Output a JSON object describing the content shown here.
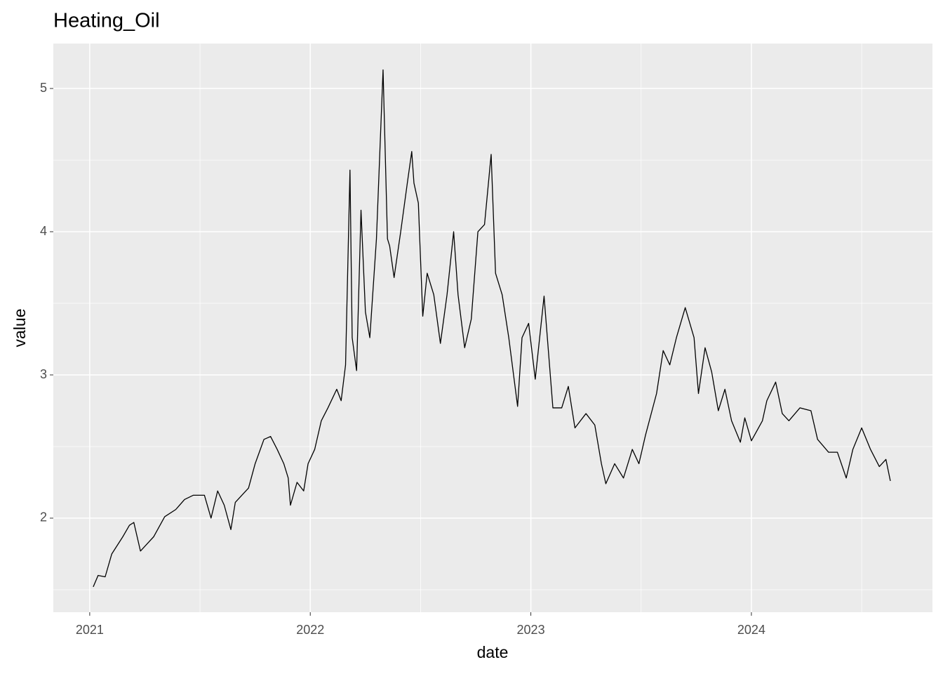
{
  "chart_data": {
    "type": "line",
    "title": "Heating_Oil",
    "x_label": "date",
    "y_label": "value",
    "x": [
      2021.016,
      2021.038,
      2021.07,
      2021.1,
      2021.15,
      2021.18,
      2021.2,
      2021.23,
      2021.26,
      2021.29,
      2021.34,
      2021.39,
      2021.43,
      2021.47,
      2021.52,
      2021.55,
      2021.58,
      2021.61,
      2021.64,
      2021.66,
      2021.69,
      2021.72,
      2021.75,
      2021.79,
      2021.82,
      2021.85,
      2021.88,
      2021.9,
      2021.91,
      2021.94,
      2021.97,
      2021.99,
      2022.02,
      2022.05,
      2022.08,
      2022.12,
      2022.14,
      2022.16,
      2022.18,
      2022.19,
      2022.21,
      2022.23,
      2022.25,
      2022.27,
      2022.3,
      2022.33,
      2022.35,
      2022.36,
      2022.38,
      2022.41,
      2022.44,
      2022.46,
      2022.47,
      2022.49,
      2022.51,
      2022.53,
      2022.56,
      2022.59,
      2022.62,
      2022.65,
      2022.67,
      2022.7,
      2022.73,
      2022.76,
      2022.79,
      2022.82,
      2022.84,
      2022.87,
      2022.9,
      2022.94,
      2022.96,
      2022.99,
      2023.02,
      2023.06,
      2023.1,
      2023.14,
      2023.17,
      2023.2,
      2023.25,
      2023.29,
      2023.32,
      2023.34,
      2023.38,
      2023.42,
      2023.46,
      2023.49,
      2023.52,
      2023.57,
      2023.6,
      2023.63,
      2023.66,
      2023.7,
      2023.74,
      2023.76,
      2023.79,
      2023.82,
      2023.85,
      2023.88,
      2023.91,
      2023.95,
      2023.97,
      2024.0,
      2024.05,
      2024.07,
      2024.11,
      2024.14,
      2024.17,
      2024.22,
      2024.27,
      2024.3,
      2024.35,
      2024.39,
      2024.43,
      2024.46,
      2024.5,
      2024.54,
      2024.58,
      2024.61,
      2024.63
    ],
    "series": [
      {
        "color": "#000000",
        "values": [
          1.52,
          1.6,
          1.59,
          1.75,
          1.87,
          1.95,
          1.97,
          1.77,
          1.82,
          1.87,
          2.01,
          2.06,
          2.13,
          2.16,
          2.16,
          2.0,
          2.19,
          2.09,
          1.92,
          2.11,
          2.16,
          2.21,
          2.38,
          2.55,
          2.57,
          2.48,
          2.38,
          2.28,
          2.09,
          2.25,
          2.19,
          2.38,
          2.48,
          2.68,
          2.77,
          2.9,
          2.82,
          3.07,
          4.43,
          3.26,
          3.03,
          4.15,
          3.44,
          3.26,
          3.95,
          5.13,
          3.95,
          3.9,
          3.68,
          4.0,
          4.34,
          4.56,
          4.34,
          4.2,
          3.41,
          3.71,
          3.56,
          3.22,
          3.56,
          4.0,
          3.56,
          3.19,
          3.39,
          4.0,
          4.05,
          4.54,
          3.71,
          3.56,
          3.26,
          2.78,
          3.26,
          3.36,
          2.97,
          3.55,
          2.77,
          2.77,
          2.92,
          2.63,
          2.73,
          2.65,
          2.38,
          2.24,
          2.38,
          2.28,
          2.48,
          2.38,
          2.58,
          2.87,
          3.17,
          3.07,
          3.26,
          3.47,
          3.26,
          2.87,
          3.19,
          3.02,
          2.75,
          2.9,
          2.68,
          2.53,
          2.7,
          2.54,
          2.68,
          2.82,
          2.95,
          2.73,
          2.68,
          2.77,
          2.75,
          2.55,
          2.46,
          2.46,
          2.28,
          2.48,
          2.63,
          2.48,
          2.36,
          2.41,
          2.26
        ]
      }
    ],
    "xlim": [
      2020.835,
      2024.821
    ],
    "xticks": [
      2021,
      2022,
      2023,
      2024
    ],
    "x_minor_ticks": [
      2021.5,
      2022.5,
      2023.5,
      2024.5
    ],
    "ylim": [
      1.343,
      5.314
    ],
    "yticks": [
      2,
      3,
      4,
      5
    ],
    "y_minor_ticks": [
      1.5,
      2.5,
      3.5,
      4.5
    ],
    "grid": true,
    "panel_color": "#EBEBEB"
  }
}
